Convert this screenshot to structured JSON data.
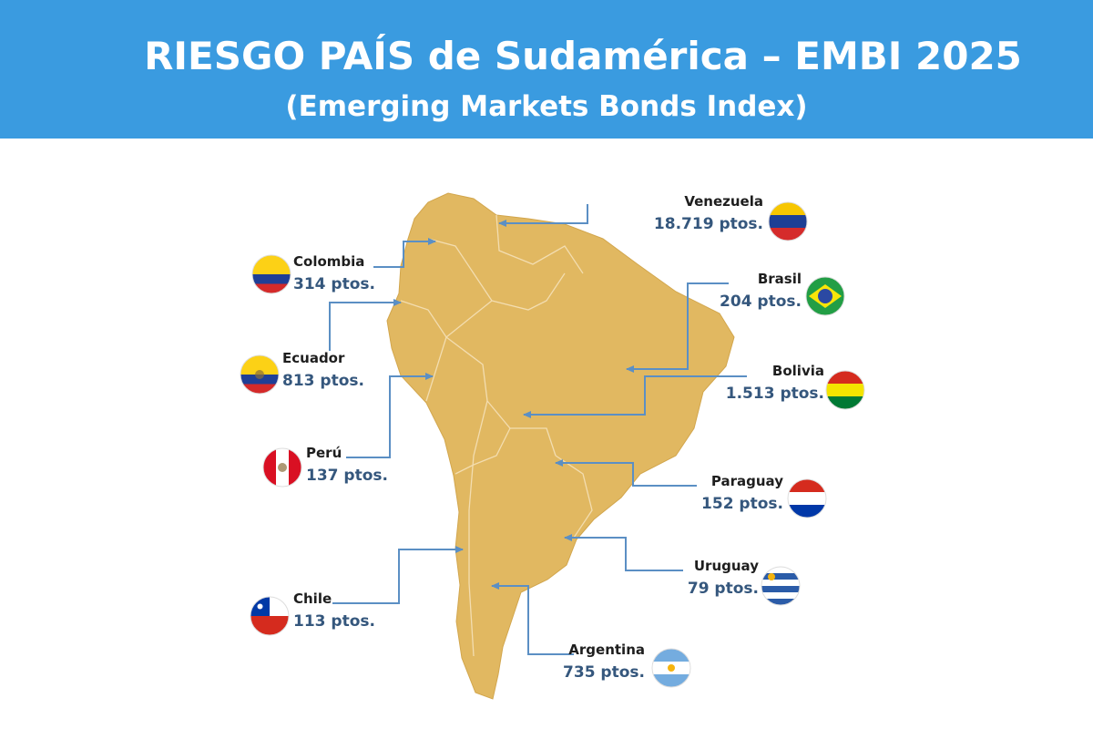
{
  "header": {
    "title": "RIESGO PAÍS de Sudamérica – EMBI 2025",
    "subtitle": "(Emerging Markets Bonds Index)"
  },
  "countries": [
    {
      "name": "Venezuela",
      "value": "18.719 ptos."
    },
    {
      "name": "Colombia",
      "value": "314 ptos."
    },
    {
      "name": "Brasil",
      "value": "204 ptos."
    },
    {
      "name": "Ecuador",
      "value": "813 ptos."
    },
    {
      "name": "Bolivia",
      "value": "1.513 ptos."
    },
    {
      "name": "Perú",
      "value": "137 ptos."
    },
    {
      "name": "Paraguay",
      "value": "152 ptos."
    },
    {
      "name": "Uruguay",
      "value": "79 ptos."
    },
    {
      "name": "Chile",
      "value": "113 ptos."
    },
    {
      "name": "Argentina",
      "value": "735 ptos."
    }
  ]
}
